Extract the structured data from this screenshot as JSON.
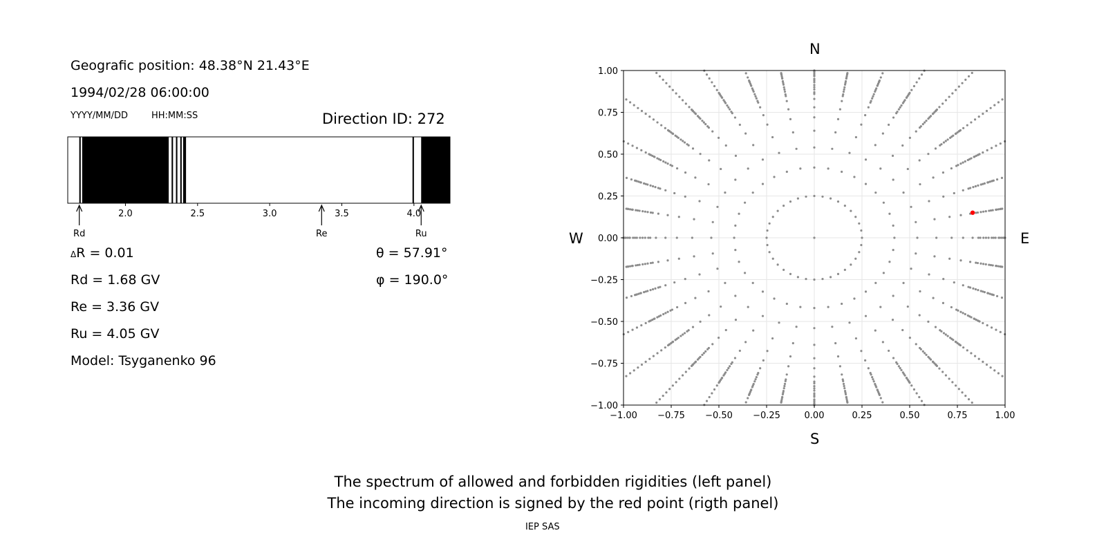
{
  "left_panel": {
    "position": "Geografic position: 48.38°N 21.43°E",
    "datetime": "1994/02/28 06:00:00",
    "date_format": "YYYY/MM/DD",
    "time_format": "HH:MM:SS",
    "direction": "Direction ID: 272",
    "delta_r": "R = 0.01",
    "delta_symbol": "Δ",
    "rd": "Rd = 1.68 GV",
    "re": "Re = 3.36 GV",
    "ru": "Ru = 4.05 GV",
    "model": "Model: Tsyganenko 96",
    "theta": "θ = 57.91°",
    "phi": "φ = 190.0°"
  },
  "right_panel": {
    "north": "N",
    "south": "S",
    "west": "W",
    "east": "E"
  },
  "footer": {
    "line1": "The spectrum of allowed and forbidden rigidities (left panel)",
    "line2": "The incoming direction is signed by the red point (rigth panel)",
    "credit": "IEP SAS"
  },
  "chart_data": [
    {
      "type": "bar",
      "title": "",
      "xlim": [
        1.6,
        4.25
      ],
      "xticks": [
        2.0,
        2.5,
        3.0,
        3.5,
        4.0
      ],
      "xtick_labels": [
        "2.0",
        "2.5",
        "3.0",
        "3.5",
        "4.0"
      ],
      "forbidden_intervals": [
        [
          1.68,
          1.69
        ],
        [
          1.7,
          2.3
        ],
        [
          2.32,
          2.33
        ],
        [
          2.35,
          2.36
        ],
        [
          2.38,
          2.39
        ],
        [
          2.4,
          2.42
        ],
        [
          3.99,
          4.0
        ],
        [
          4.05,
          4.25
        ]
      ],
      "markers": [
        {
          "label": "Rd",
          "x": 1.68
        },
        {
          "label": "Re",
          "x": 3.36
        },
        {
          "label": "Ru",
          "x": 4.05
        }
      ]
    },
    {
      "type": "scatter",
      "xlim": [
        -1.0,
        1.0
      ],
      "ylim": [
        -1.0,
        1.0
      ],
      "xticks": [
        "−1.00",
        "−0.75",
        "−0.50",
        "−0.25",
        "0.00",
        "0.25",
        "0.50",
        "0.75",
        "1.00"
      ],
      "yticks": [
        "−1.00",
        "−0.75",
        "−0.50",
        "−0.25",
        "0.00",
        "0.25",
        "0.50",
        "0.75",
        "1.00"
      ],
      "tick_values": [
        -1.0,
        -0.75,
        -0.5,
        -0.25,
        0.0,
        0.25,
        0.5,
        0.75,
        1.0
      ],
      "grid": true,
      "grid_point_color": "#8c8c8c",
      "ring_radii": [
        0.0,
        0.25,
        0.42,
        0.54,
        0.64,
        0.72,
        0.78,
        0.83,
        0.87,
        0.9,
        0.93,
        0.95,
        0.97,
        0.98,
        0.99,
        1.0
      ],
      "ring_counts": [
        1,
        36,
        36,
        36,
        36,
        36,
        36,
        36,
        36,
        36,
        36,
        36,
        36,
        36,
        36,
        36
      ],
      "radial_sample_count": 24,
      "radial_sample_min": 0.86,
      "highlight": {
        "x": 0.83,
        "y": 0.15,
        "color": "#ff0000"
      }
    }
  ]
}
